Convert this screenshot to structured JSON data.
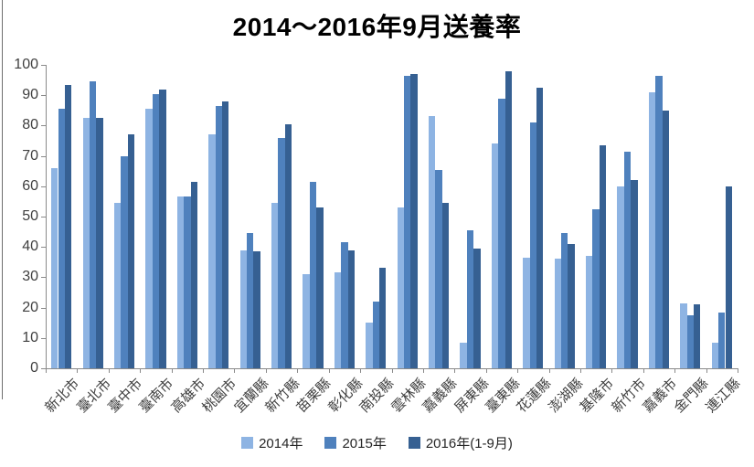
{
  "chart_data": {
    "type": "bar",
    "title": "2014～2016年9月送養率",
    "categories": [
      "新北市",
      "臺北市",
      "臺中市",
      "臺南市",
      "高雄市",
      "桃園市",
      "宜蘭縣",
      "新竹縣",
      "苗栗縣",
      "彰化縣",
      "南投縣",
      "雲林縣",
      "嘉義縣",
      "屏東縣",
      "臺東縣",
      "花蓮縣",
      "澎湖縣",
      "基隆市",
      "新竹市",
      "嘉義市",
      "金門縣",
      "連江縣"
    ],
    "series": [
      {
        "name": "2014年",
        "color": "#8EB4E3",
        "values": [
          66,
          82.5,
          54.5,
          85.5,
          56.5,
          77,
          39,
          54.5,
          31,
          31.5,
          15,
          53,
          83,
          8.5,
          74,
          36.5,
          36,
          37,
          60,
          91,
          21.5,
          8.5
        ]
      },
      {
        "name": "2015年",
        "color": "#4F81BD",
        "values": [
          85.5,
          94.5,
          70,
          90.5,
          56.5,
          86.5,
          44.5,
          76,
          61.5,
          41.5,
          22,
          96.5,
          65.5,
          45.5,
          89,
          81,
          44.5,
          52.5,
          71.5,
          96.5,
          17.5,
          18.5
        ]
      },
      {
        "name": "2016年(1-9月)",
        "color": "#366092",
        "values": [
          93.5,
          82.5,
          77,
          92,
          61.5,
          88,
          38.5,
          80.5,
          53,
          39,
          33,
          97,
          54.5,
          39.5,
          98,
          92.5,
          41,
          73.5,
          62,
          85,
          21,
          60
        ]
      }
    ],
    "ylim": [
      0,
      100
    ],
    "yticks": [
      0,
      10,
      20,
      30,
      40,
      50,
      60,
      70,
      80,
      90,
      100
    ],
    "grid": "off",
    "legend_position": "bottom",
    "axis_color": "#8a8a8a"
  }
}
